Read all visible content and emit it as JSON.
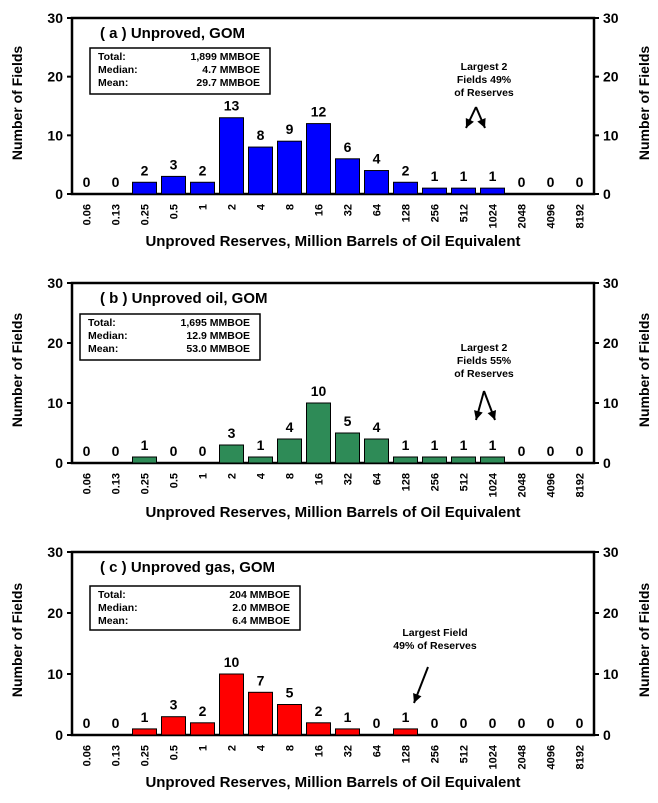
{
  "colors": {
    "panel_a": "#0000ff",
    "panel_b": "#2e8b57",
    "panel_c": "#ff0000"
  },
  "chart_data": [
    {
      "type": "bar",
      "title": "( a )  Unproved, GOM",
      "xlabel": "Unproved Reserves, Million Barrels of Oil Equivalent",
      "ylabel_left": "Number of Fields",
      "ylabel_right": "Number of Fields",
      "ylim": [
        0,
        30
      ],
      "yticks": [
        "0",
        "10",
        "20",
        "30"
      ],
      "categories": [
        "0.06",
        "0.13",
        "0.25",
        "0.5",
        "1",
        "2",
        "4",
        "8",
        "16",
        "32",
        "64",
        "128",
        "256",
        "512",
        "1024",
        "2048",
        "4096",
        "8192"
      ],
      "values": [
        0,
        0,
        2,
        3,
        2,
        13,
        8,
        9,
        12,
        6,
        4,
        2,
        1,
        1,
        1,
        0,
        0,
        0
      ],
      "stats": [
        {
          "label": "Total:",
          "value": "1,899 MMBOE"
        },
        {
          "label": "Median:",
          "value": "4.7 MMBOE"
        },
        {
          "label": "Mean:",
          "value": "29.7 MMBOE"
        }
      ],
      "annotation": [
        "Largest 2",
        "Fields 49%",
        "of Reserves"
      ]
    },
    {
      "type": "bar",
      "title": "( b )  Unproved oil, GOM",
      "xlabel": "Unproved Reserves, Million Barrels of Oil Equivalent",
      "ylabel_left": "Number of Fields",
      "ylabel_right": "Number of Fields",
      "ylim": [
        0,
        30
      ],
      "yticks": [
        "0",
        "10",
        "20",
        "30"
      ],
      "categories": [
        "0.06",
        "0.13",
        "0.25",
        "0.5",
        "1",
        "2",
        "4",
        "8",
        "16",
        "32",
        "64",
        "128",
        "256",
        "512",
        "1024",
        "2048",
        "4096",
        "8192"
      ],
      "values": [
        0,
        0,
        1,
        0,
        0,
        3,
        1,
        4,
        10,
        5,
        4,
        1,
        1,
        1,
        1,
        0,
        0,
        0
      ],
      "stats": [
        {
          "label": "Total:",
          "value": "1,695 MMBOE"
        },
        {
          "label": "Median:",
          "value": "12.9 MMBOE"
        },
        {
          "label": "Mean:",
          "value": "53.0 MMBOE"
        }
      ],
      "annotation": [
        "Largest 2",
        "Fields 55%",
        "of Reserves"
      ]
    },
    {
      "type": "bar",
      "title": "( c )  Unproved gas, GOM",
      "xlabel": "Unproved Reserves, Million Barrels of Oil Equivalent",
      "ylabel_left": "Number of Fields",
      "ylabel_right": "Number of Fields",
      "ylim": [
        0,
        30
      ],
      "yticks": [
        "0",
        "10",
        "20",
        "30"
      ],
      "categories": [
        "0.06",
        "0.13",
        "0.25",
        "0.5",
        "1",
        "2",
        "4",
        "8",
        "16",
        "32",
        "64",
        "128",
        "256",
        "512",
        "1024",
        "2048",
        "4096",
        "8192"
      ],
      "values": [
        0,
        0,
        1,
        3,
        2,
        10,
        7,
        5,
        2,
        1,
        0,
        1,
        0,
        0,
        0,
        0,
        0,
        0
      ],
      "stats": [
        {
          "label": "Total:",
          "value": "204 MMBOE"
        },
        {
          "label": "Median:",
          "value": "2.0 MMBOE"
        },
        {
          "label": "Mean:",
          "value": "6.4 MMBOE"
        }
      ],
      "annotation": [
        "Largest Field",
        "49% of Reserves"
      ]
    }
  ]
}
